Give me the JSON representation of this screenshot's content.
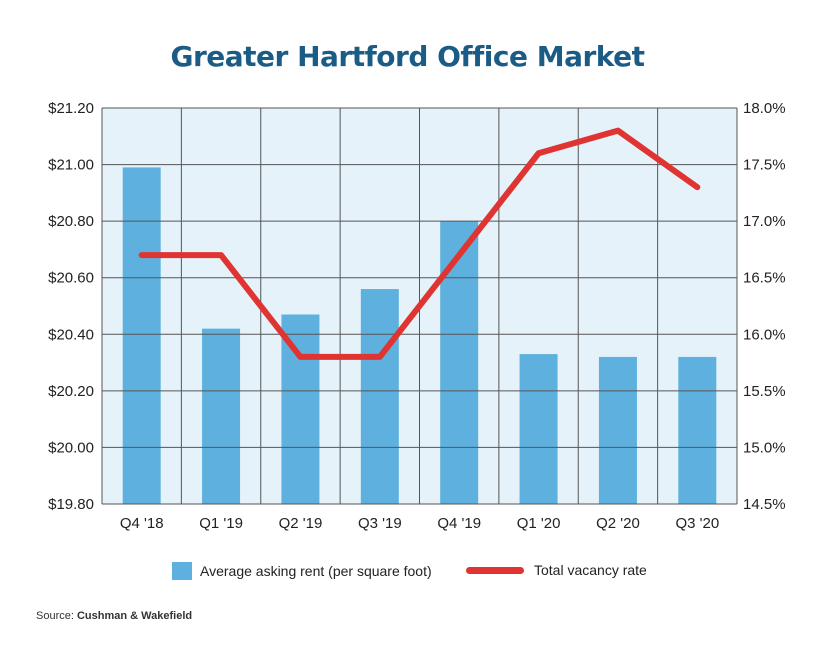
{
  "colors": {
    "title": "#1b5c86",
    "plot_bg": "#e5f2fa",
    "grid": "#555555",
    "bar": "#5eb1df",
    "line": "#e03432"
  },
  "chart_data": {
    "type": "bar",
    "title": "Greater Hartford Office Market",
    "categories": [
      "Q4 '18",
      "Q1 '19",
      "Q2 '19",
      "Q3 '19",
      "Q4 '19",
      "Q1 '20",
      "Q2 '20",
      "Q3 '20"
    ],
    "series": [
      {
        "name": "Average asking rent (per square foot)",
        "type": "bar",
        "axis": "left",
        "values": [
          20.99,
          20.42,
          20.47,
          20.56,
          20.8,
          20.33,
          20.32,
          20.32
        ]
      },
      {
        "name": "Total vacancy rate",
        "type": "line",
        "axis": "right",
        "values": [
          16.7,
          16.7,
          15.8,
          15.8,
          16.7,
          17.6,
          17.8,
          17.3
        ]
      }
    ],
    "y_left": {
      "ylim": [
        19.8,
        21.2
      ],
      "ticks": [
        21.2,
        21.0,
        20.8,
        20.6,
        20.4,
        20.2,
        20.0,
        19.8
      ],
      "tick_labels": [
        "$21.20",
        "$21.00",
        "$20.80",
        "$20.60",
        "$20.40",
        "$20.20",
        "$20.00",
        "$19.80"
      ]
    },
    "y_right": {
      "ylim": [
        14.5,
        18.0
      ],
      "ticks": [
        18.0,
        17.5,
        17.0,
        16.5,
        16.0,
        15.5,
        15.0,
        14.5
      ],
      "tick_labels": [
        "18.0%",
        "17.5%",
        "17.0%",
        "16.5%",
        "16.0%",
        "15.5%",
        "15.0%",
        "14.5%"
      ]
    },
    "grid": true,
    "legend_position": "bottom"
  },
  "source": {
    "prefix": "Source:",
    "name": "Cushman & Wakefield"
  }
}
